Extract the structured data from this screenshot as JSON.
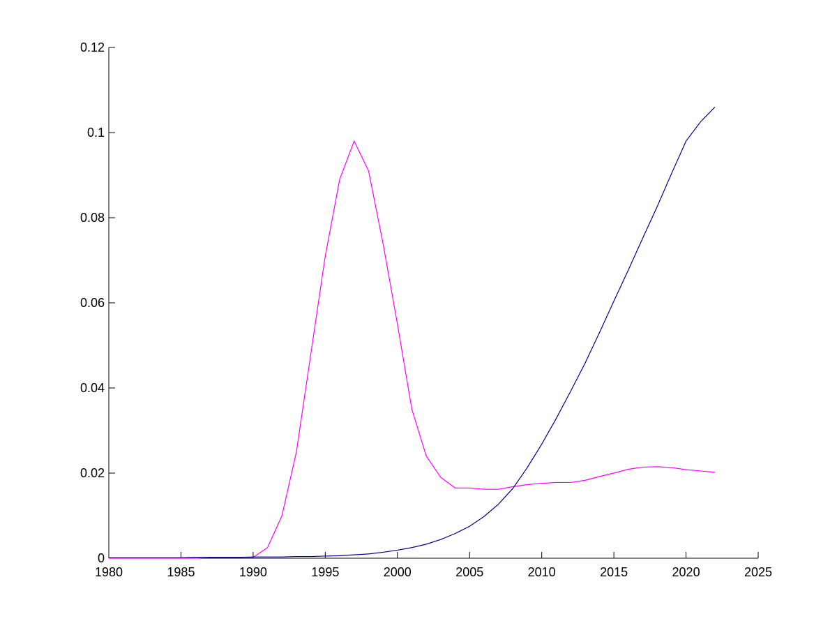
{
  "chart_data": {
    "type": "line",
    "x": [
      1980,
      1981,
      1982,
      1983,
      1984,
      1985,
      1986,
      1987,
      1988,
      1989,
      1990,
      1991,
      1992,
      1993,
      1994,
      1995,
      1996,
      1997,
      1998,
      1999,
      2000,
      2001,
      2002,
      2003,
      2004,
      2005,
      2006,
      2007,
      2008,
      2009,
      2010,
      2011,
      2012,
      2013,
      2014,
      2015,
      2016,
      2017,
      2018,
      2019,
      2020,
      2021,
      2022
    ],
    "series": [
      {
        "color": "#ff00ff",
        "values": [
          0,
          0,
          0,
          0,
          0,
          0,
          0,
          0.0002,
          0.0002,
          0.0002,
          0.0002,
          0.0025,
          0.01,
          0.025,
          0.048,
          0.071,
          0.089,
          0.098,
          0.091,
          0.074,
          0.055,
          0.035,
          0.024,
          0.019,
          0.0165,
          0.0165,
          0.0162,
          0.0162,
          0.0168,
          0.0173,
          0.0176,
          0.0178,
          0.0178,
          0.0183,
          0.0192,
          0.02,
          0.0209,
          0.0214,
          0.0215,
          0.0213,
          0.0208,
          0.0205,
          0.0202
        ]
      },
      {
        "color": "#00008b",
        "values": [
          0.0001,
          0.0001,
          0.0001,
          0.0001,
          0.0001,
          0.0001,
          0.0002,
          0.0002,
          0.0002,
          0.0002,
          0.0003,
          0.0003,
          0.0003,
          0.0004,
          0.0004,
          0.0005,
          0.0006,
          0.0008,
          0.001,
          0.0014,
          0.0019,
          0.0025,
          0.0033,
          0.0044,
          0.0058,
          0.0075,
          0.0098,
          0.0127,
          0.0164,
          0.0213,
          0.0268,
          0.0328,
          0.0392,
          0.0458,
          0.053,
          0.0604,
          0.0677,
          0.0752,
          0.0826,
          0.0904,
          0.098,
          0.1025,
          0.106
        ]
      }
    ],
    "xlim": [
      1980,
      2025
    ],
    "xticks": [
      1980,
      1985,
      1990,
      1995,
      2000,
      2005,
      2010,
      2015,
      2020,
      2025
    ],
    "ylim": [
      0,
      0.12
    ],
    "yticks": [
      0,
      0.02,
      0.04,
      0.06,
      0.08,
      0.1,
      0.12
    ]
  }
}
